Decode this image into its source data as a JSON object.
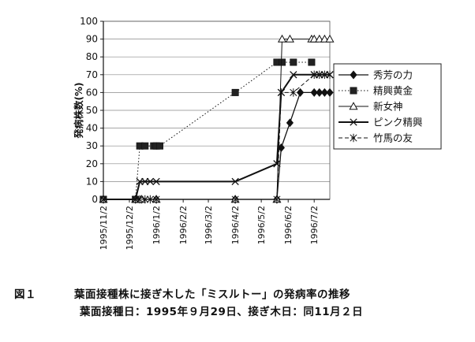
{
  "chart_data": {
    "type": "line",
    "ylabel": "発病株数(%)",
    "ylim": [
      0,
      100
    ],
    "yticks": [
      0,
      10,
      20,
      30,
      40,
      50,
      60,
      70,
      80,
      90,
      100
    ],
    "xlim": [
      "1995-11-02",
      "1996-07-20"
    ],
    "xticks": [
      {
        "date": "1995-11-02",
        "label": "1995/11/2"
      },
      {
        "date": "1995-12-02",
        "label": "1995/12/2"
      },
      {
        "date": "1996-01-02",
        "label": "1996/1/2"
      },
      {
        "date": "1996-02-02",
        "label": "1996/2/2"
      },
      {
        "date": "1996-03-02",
        "label": "1996/3/2"
      },
      {
        "date": "1996-04-02",
        "label": "1996/4/2"
      },
      {
        "date": "1996-05-02",
        "label": "1996/5/2"
      },
      {
        "date": "1996-06-02",
        "label": "1996/6/2"
      },
      {
        "date": "1996-07-02",
        "label": "1996/7/2"
      }
    ],
    "grid": "horizontal",
    "legend": "right",
    "series": [
      {
        "name": "秀芳の力",
        "marker": "diamond",
        "dash": "solid",
        "width": 1.3,
        "x": [
          "1995-11-02",
          "1995-12-09",
          "1995-12-16",
          "1996-01-02",
          "1996-04-02",
          "1996-05-20",
          "1996-05-25",
          "1996-06-04",
          "1996-06-16",
          "1996-07-02",
          "1996-07-08",
          "1996-07-14",
          "1996-07-20"
        ],
        "y": [
          0,
          0,
          0,
          0,
          0,
          0,
          29,
          43,
          60,
          60,
          60,
          60,
          60
        ]
      },
      {
        "name": "精興黄金",
        "marker": "square",
        "dash": "dotted",
        "width": 1.0,
        "x": [
          "1995-11-02",
          "1995-12-09",
          "1995-12-14",
          "1995-12-20",
          "1995-12-30",
          "1996-01-02",
          "1996-01-06",
          "1996-04-02",
          "1996-05-20",
          "1996-05-26",
          "1996-06-08",
          "1996-06-29"
        ],
        "y": [
          0,
          0,
          30,
          30,
          30,
          30,
          30,
          60,
          77,
          77,
          77,
          77
        ]
      },
      {
        "name": "新女神",
        "marker": "triangle",
        "dash": "solid",
        "width": 1.0,
        "x": [
          "1995-11-02",
          "1995-12-09",
          "1995-12-16",
          "1996-01-02",
          "1996-04-02",
          "1996-05-20",
          "1996-05-26",
          "1996-06-04",
          "1996-06-29",
          "1996-07-02",
          "1996-07-08",
          "1996-07-14",
          "1996-07-20"
        ],
        "y": [
          0,
          0,
          0,
          0,
          0,
          0,
          90,
          90,
          90,
          90,
          90,
          90,
          90
        ]
      },
      {
        "name": "ピンク精興",
        "marker": "x",
        "dash": "solid",
        "width": 2.0,
        "x": [
          "1995-11-02",
          "1995-12-09",
          "1995-12-14",
          "1995-12-20",
          "1995-12-26",
          "1996-01-02",
          "1996-04-02",
          "1996-05-20",
          "1996-05-25",
          "1996-06-08",
          "1996-07-02",
          "1996-07-08",
          "1996-07-14",
          "1996-07-20"
        ],
        "y": [
          0,
          0,
          10,
          10,
          10,
          10,
          10,
          20,
          60,
          70,
          70,
          70,
          70,
          70
        ]
      },
      {
        "name": "竹馬の友",
        "marker": "star",
        "dash": "dashed",
        "width": 1.0,
        "x": [
          "1995-11-02",
          "1995-12-09",
          "1995-12-14",
          "1995-12-20",
          "1995-12-26",
          "1996-01-02",
          "1996-04-02",
          "1996-05-20",
          "1996-05-25",
          "1996-06-08",
          "1996-07-02",
          "1996-07-08",
          "1996-07-14",
          "1996-07-20"
        ],
        "y": [
          0,
          0,
          0,
          0,
          0,
          0,
          0,
          0,
          60,
          60,
          70,
          70,
          70,
          70
        ]
      }
    ]
  },
  "caption": {
    "label": "図１",
    "title": "葉面接種株に接ぎ木した「ミスルトー」の発病率の推移",
    "line2": "葉面接種日：1995年９月29日、接ぎ木日：同11月２日"
  }
}
